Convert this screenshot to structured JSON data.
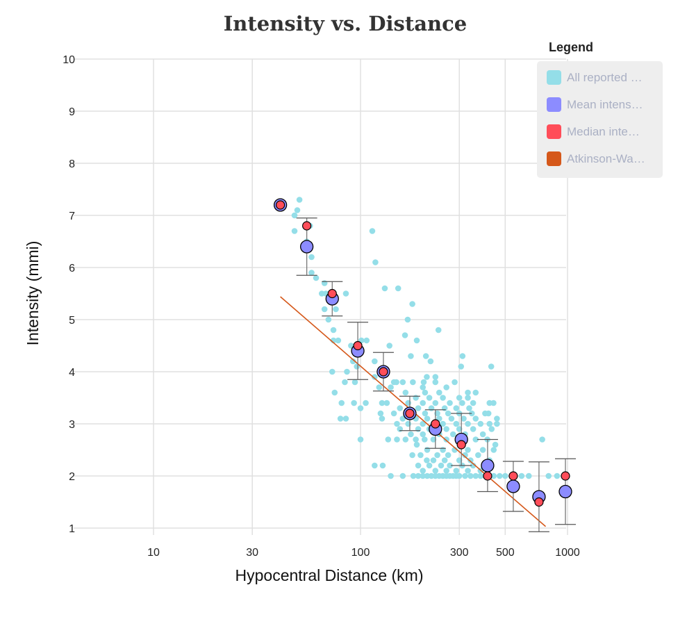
{
  "chart_data": {
    "type": "scatter",
    "title": "Intensity vs. Distance",
    "xlabel": "Hypocentral Distance (km)",
    "ylabel": "Intensity (mmi)",
    "xscale": "log",
    "xlim": [
      5,
      1000
    ],
    "ylim": [
      1,
      10
    ],
    "xticks": [
      "10",
      "30",
      "100",
      "300",
      "500",
      "1000"
    ],
    "xtick_values": [
      10,
      30,
      100,
      300,
      500,
      1000
    ],
    "yticks": [
      "1",
      "2",
      "3",
      "4",
      "5",
      "6",
      "7",
      "8",
      "9",
      "10"
    ],
    "grid": true,
    "legend": {
      "title": "Legend",
      "placement": "top-right",
      "items": [
        {
          "label": "All reported …",
          "color": "#94dee8"
        },
        {
          "label": "Mean intens…",
          "color": "#8c8cff"
        },
        {
          "label": "Median inte…",
          "color": "#ff4d59"
        },
        {
          "label": "Atkinson-Wa…",
          "color": "#d5581a"
        }
      ]
    },
    "series": [
      {
        "name": "All reported",
        "color": "#94dee8",
        "points": [
          [
            50.7,
            7.3
          ],
          [
            49.5,
            7.1
          ],
          [
            48,
            7.0
          ],
          [
            48,
            6.7
          ],
          [
            57,
            6.8
          ],
          [
            58,
            6.2
          ],
          [
            55,
            6.5
          ],
          [
            58,
            5.9
          ],
          [
            61,
            5.8
          ],
          [
            67,
            5.7
          ],
          [
            65,
            5.5
          ],
          [
            68,
            5.5
          ],
          [
            85,
            5.5
          ],
          [
            67,
            5.2
          ],
          [
            76,
            5.2
          ],
          [
            70,
            5.0
          ],
          [
            74,
            4.8
          ],
          [
            74,
            4.6
          ],
          [
            78,
            4.6
          ],
          [
            73,
            4.0
          ],
          [
            75,
            3.6
          ],
          [
            81,
            3.4
          ],
          [
            80,
            3.1
          ],
          [
            85,
            3.1
          ],
          [
            84,
            3.8
          ],
          [
            94,
            3.8
          ],
          [
            100,
            3.3
          ],
          [
            93,
            3.4
          ],
          [
            106,
            3.4
          ],
          [
            100,
            2.7
          ],
          [
            101,
            4.6
          ],
          [
            107,
            4.6
          ],
          [
            100,
            4.4
          ],
          [
            90,
            4.5
          ],
          [
            92,
            4.2
          ],
          [
            86,
            4.0
          ],
          [
            96,
            4.1
          ],
          [
            114,
            6.7
          ],
          [
            118,
            6.1
          ],
          [
            131,
            5.6
          ],
          [
            152,
            5.6
          ],
          [
            178,
            5.3
          ],
          [
            169,
            5.0
          ],
          [
            164,
            4.7
          ],
          [
            187,
            4.6
          ],
          [
            238,
            4.8
          ],
          [
            138,
            4.5
          ],
          [
            175,
            4.3
          ],
          [
            207,
            4.3
          ],
          [
            218,
            4.2
          ],
          [
            311,
            4.3
          ],
          [
            428,
            4.1
          ],
          [
            306,
            4.1
          ],
          [
            117,
            4.2
          ],
          [
            117,
            3.9
          ],
          [
            123,
            3.7
          ],
          [
            127,
            3.4
          ],
          [
            134,
            3.4
          ],
          [
            140,
            3.7
          ],
          [
            149,
            3.8
          ],
          [
            160,
            3.8
          ],
          [
            179,
            3.8
          ],
          [
            202,
            3.8
          ],
          [
            209,
            3.9
          ],
          [
            230,
            3.8
          ],
          [
            285,
            3.8
          ],
          [
            125,
            3.2
          ],
          [
            127,
            3.1
          ],
          [
            136,
            2.7
          ],
          [
            150,
            2.7
          ],
          [
            117,
            2.2
          ],
          [
            128,
            2.2
          ],
          [
            140,
            2.0
          ],
          [
            160,
            2.0
          ],
          [
            178,
            2.4
          ],
          [
            190,
            2.2
          ],
          [
            187,
            2.6
          ],
          [
            204,
            2.7
          ],
          [
            209,
            2.3
          ],
          [
            448,
            2.6
          ],
          [
            755,
            2.7
          ],
          [
            555,
            2.0
          ],
          [
            600,
            2.0
          ],
          [
            650,
            2.0
          ],
          [
            810,
            2.0
          ],
          [
            890,
            2.0
          ],
          [
            456,
            3.0
          ],
          [
            439,
            3.4
          ],
          [
            415,
            3.2
          ],
          [
            456,
            3.1
          ],
          [
            180,
            2.0
          ],
          [
            190,
            2.0
          ],
          [
            200,
            2.0
          ],
          [
            210,
            2.0
          ],
          [
            220,
            2.0
          ],
          [
            230,
            2.0
          ],
          [
            240,
            2.0
          ],
          [
            250,
            2.0
          ],
          [
            260,
            2.0
          ],
          [
            270,
            2.0
          ],
          [
            280,
            2.0
          ],
          [
            290,
            2.0
          ],
          [
            300,
            2.0
          ],
          [
            320,
            2.0
          ],
          [
            340,
            2.0
          ],
          [
            360,
            2.0
          ],
          [
            380,
            2.0
          ],
          [
            400,
            2.0
          ],
          [
            420,
            2.0
          ],
          [
            440,
            2.0
          ],
          [
            470,
            2.0
          ],
          [
            500,
            2.0
          ],
          [
            200,
            2.1
          ],
          [
            230,
            2.1
          ],
          [
            260,
            2.1
          ],
          [
            290,
            2.1
          ],
          [
            330,
            2.1
          ],
          [
            380,
            2.1
          ],
          [
            215,
            2.2
          ],
          [
            245,
            2.2
          ],
          [
            270,
            2.2
          ],
          [
            310,
            2.2
          ],
          [
            350,
            2.2
          ],
          [
            400,
            2.2
          ],
          [
            225,
            2.3
          ],
          [
            255,
            2.3
          ],
          [
            300,
            2.3
          ],
          [
            340,
            2.3
          ],
          [
            420,
            2.3
          ],
          [
            195,
            2.4
          ],
          [
            235,
            2.4
          ],
          [
            265,
            2.4
          ],
          [
            320,
            2.4
          ],
          [
            370,
            2.4
          ],
          [
            210,
            2.5
          ],
          [
            250,
            2.5
          ],
          [
            285,
            2.5
          ],
          [
            330,
            2.5
          ],
          [
            390,
            2.5
          ],
          [
            440,
            2.5
          ],
          [
            165,
            2.7
          ],
          [
            185,
            2.7
          ],
          [
            225,
            2.7
          ],
          [
            260,
            2.7
          ],
          [
            300,
            2.7
          ],
          [
            360,
            2.7
          ],
          [
            410,
            2.7
          ],
          [
            175,
            2.8
          ],
          [
            200,
            2.8
          ],
          [
            240,
            2.8
          ],
          [
            280,
            2.8
          ],
          [
            320,
            2.8
          ],
          [
            390,
            2.8
          ],
          [
            155,
            2.9
          ],
          [
            190,
            2.9
          ],
          [
            215,
            2.9
          ],
          [
            260,
            2.9
          ],
          [
            300,
            2.9
          ],
          [
            350,
            2.9
          ],
          [
            430,
            2.9
          ],
          [
            150,
            3.0
          ],
          [
            170,
            3.0
          ],
          [
            200,
            3.0
          ],
          [
            225,
            3.0
          ],
          [
            250,
            3.0
          ],
          [
            290,
            3.0
          ],
          [
            330,
            3.0
          ],
          [
            380,
            3.0
          ],
          [
            420,
            3.0
          ],
          [
            160,
            3.1
          ],
          [
            185,
            3.1
          ],
          [
            210,
            3.1
          ],
          [
            240,
            3.1
          ],
          [
            275,
            3.1
          ],
          [
            315,
            3.1
          ],
          [
            360,
            3.1
          ],
          [
            145,
            3.2
          ],
          [
            175,
            3.2
          ],
          [
            205,
            3.2
          ],
          [
            235,
            3.2
          ],
          [
            265,
            3.2
          ],
          [
            300,
            3.2
          ],
          [
            345,
            3.2
          ],
          [
            400,
            3.2
          ],
          [
            155,
            3.3
          ],
          [
            190,
            3.3
          ],
          [
            220,
            3.3
          ],
          [
            255,
            3.3
          ],
          [
            290,
            3.3
          ],
          [
            335,
            3.3
          ],
          [
            170,
            3.4
          ],
          [
            200,
            3.4
          ],
          [
            230,
            3.4
          ],
          [
            270,
            3.4
          ],
          [
            310,
            3.4
          ],
          [
            350,
            3.4
          ],
          [
            420,
            3.4
          ],
          [
            185,
            3.5
          ],
          [
            215,
            3.5
          ],
          [
            250,
            3.5
          ],
          [
            300,
            3.5
          ],
          [
            330,
            3.5
          ],
          [
            165,
            3.6
          ],
          [
            205,
            3.6
          ],
          [
            240,
            3.6
          ],
          [
            330,
            3.6
          ],
          [
            360,
            3.6
          ],
          [
            200,
            3.7
          ],
          [
            260,
            3.7
          ],
          [
            145,
            3.8
          ],
          [
            230,
            3.9
          ]
        ]
      },
      {
        "name": "Mean intensity",
        "color": "#8c8cff",
        "x": [
          41,
          55,
          73,
          97,
          129,
          173,
          230,
          307,
          411,
          547,
          728,
          977
        ],
        "y": [
          7.2,
          6.4,
          5.4,
          4.4,
          4.0,
          3.2,
          2.9,
          2.7,
          2.2,
          1.8,
          1.6,
          1.7
        ],
        "error_low": [
          null,
          5.85,
          5.07,
          3.85,
          3.63,
          2.87,
          2.53,
          2.2,
          1.7,
          1.32,
          0.93,
          1.07
        ],
        "error_high": [
          null,
          6.95,
          5.73,
          4.95,
          4.37,
          3.53,
          3.27,
          3.2,
          2.7,
          2.28,
          2.27,
          2.33
        ]
      },
      {
        "name": "Median intensity",
        "color": "#ff4d59",
        "x": [
          41,
          55,
          73,
          97,
          129,
          173,
          230,
          307,
          411,
          547,
          728,
          977
        ],
        "y": [
          7.2,
          6.8,
          5.5,
          4.5,
          4.0,
          3.2,
          3.0,
          2.6,
          2.0,
          2.0,
          1.5,
          2.0
        ]
      },
      {
        "name": "Atkinson-Wald",
        "color": "#d5581a",
        "type": "line",
        "x": [
          41,
          784
        ],
        "y": [
          5.44,
          1.03
        ]
      }
    ]
  }
}
